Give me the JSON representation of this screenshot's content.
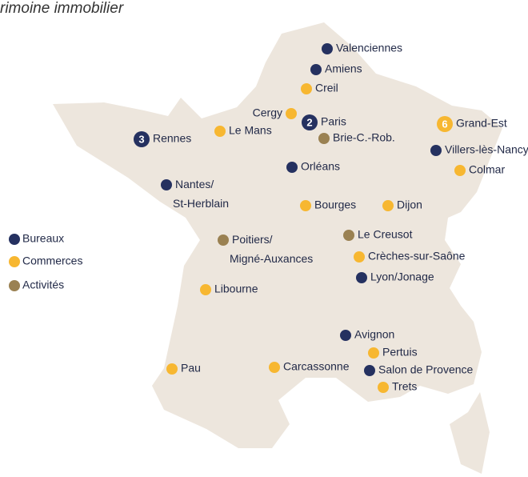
{
  "header": {
    "title": "rimoine immobilier"
  },
  "groups": [
    {
      "label": "Bureaux",
      "color": "#253160",
      "sites": [
        {
          "label": "Valenciennes"
        },
        {
          "label": "Amiens"
        },
        {
          "label": "Paris",
          "count": 2
        },
        {
          "label": "Rennes",
          "count": 3
        },
        {
          "label": "Villers-lès-Nancy"
        },
        {
          "label": "Orléans"
        },
        {
          "label": "Nantes/\nSt-Herblain"
        },
        {
          "label": "Lyon/Jonage"
        },
        {
          "label": "Avignon"
        },
        {
          "label": "Salon de Provence"
        }
      ]
    },
    {
      "label": "Commerces",
      "color": "#f7b731",
      "sites": [
        {
          "label": "Creil"
        },
        {
          "label": "Cergy"
        },
        {
          "label": "Le Mans"
        },
        {
          "label": "Grand-Est",
          "count": 6
        },
        {
          "label": "Colmar"
        },
        {
          "label": "Bourges"
        },
        {
          "label": "Dijon"
        },
        {
          "label": "Crèches-sur-Saône"
        },
        {
          "label": "Libourne"
        },
        {
          "label": "Pertuis"
        },
        {
          "label": "Pau"
        },
        {
          "label": "Carcassonne"
        },
        {
          "label": "Trets"
        }
      ]
    },
    {
      "label": "Activités",
      "color": "#9a8152",
      "sites": [
        {
          "label": "Brie-C.-Rob."
        },
        {
          "label": "Le Creusot"
        },
        {
          "label": "Poitiers/\nMigné-Auxances"
        }
      ]
    }
  ]
}
